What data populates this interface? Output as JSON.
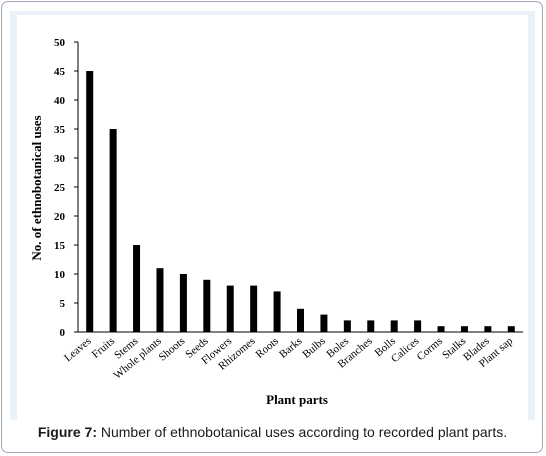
{
  "caption": {
    "figure_label": "Figure 7:",
    "text": " Number of ethnobotanical uses according to recorded plant parts."
  },
  "chart_data": {
    "type": "bar",
    "title": "",
    "xlabel": "Plant parts",
    "ylabel": "No. of ethnobotanical uses",
    "ylim": [
      0,
      50
    ],
    "yticks": [
      0,
      5,
      10,
      15,
      20,
      25,
      30,
      35,
      40,
      45,
      50
    ],
    "grid": false,
    "categories": [
      "Leaves",
      "Fruits",
      "Stems",
      "Whole plants",
      "Shoots",
      "Seeds",
      "Flowers",
      "Rhizomes",
      "Roots",
      "Barks",
      "Bulbs",
      "Boles",
      "Branches",
      "Bolls",
      "Calices",
      "Corms",
      "Stalks",
      "Blades",
      "Plant sap"
    ],
    "values": [
      45,
      35,
      15,
      11,
      10,
      9,
      8,
      8,
      7,
      4,
      3,
      2,
      2,
      2,
      2,
      1,
      1,
      1,
      1
    ],
    "bar_color": "#000000"
  }
}
